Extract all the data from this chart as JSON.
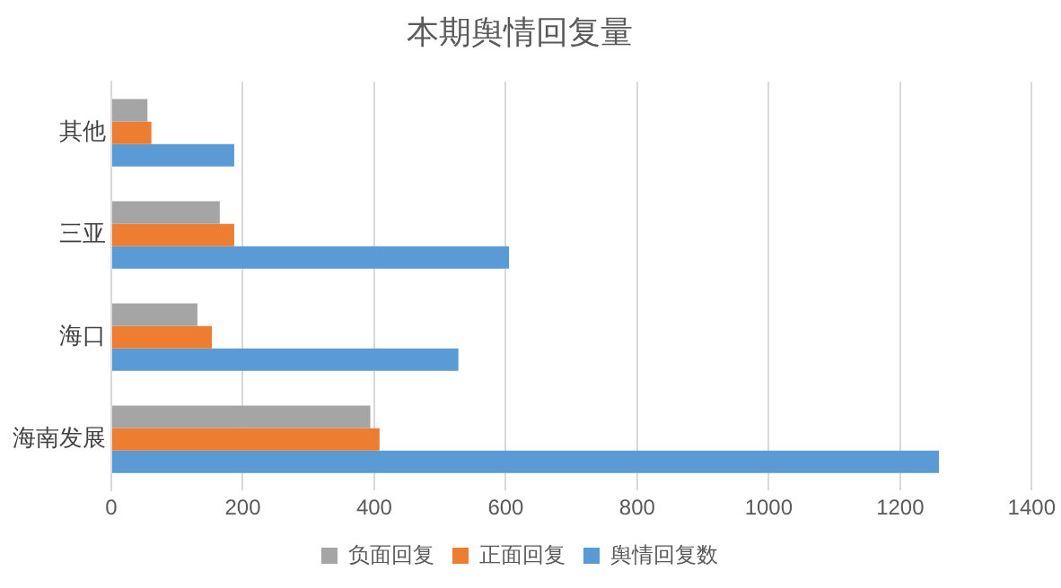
{
  "chart_data": {
    "type": "bar",
    "orientation": "horizontal",
    "title": "本期舆情回复量",
    "categories": [
      "其他",
      "三亚",
      "海口",
      "海南发展"
    ],
    "series": [
      {
        "name": "负面回复",
        "color": "#a5a5a5",
        "values": [
          55,
          165,
          131,
          394
        ]
      },
      {
        "name": "正面回复",
        "color": "#ed7d31",
        "values": [
          61,
          187,
          153,
          408
        ]
      },
      {
        "name": "舆情回复数",
        "color": "#5b9bd5",
        "values": [
          187,
          605,
          528,
          1259
        ]
      }
    ],
    "xlim": [
      0,
      1400
    ],
    "xticks": [
      0,
      200,
      400,
      600,
      800,
      1000,
      1200,
      1400
    ],
    "grid": "x",
    "legend": "bottom"
  }
}
